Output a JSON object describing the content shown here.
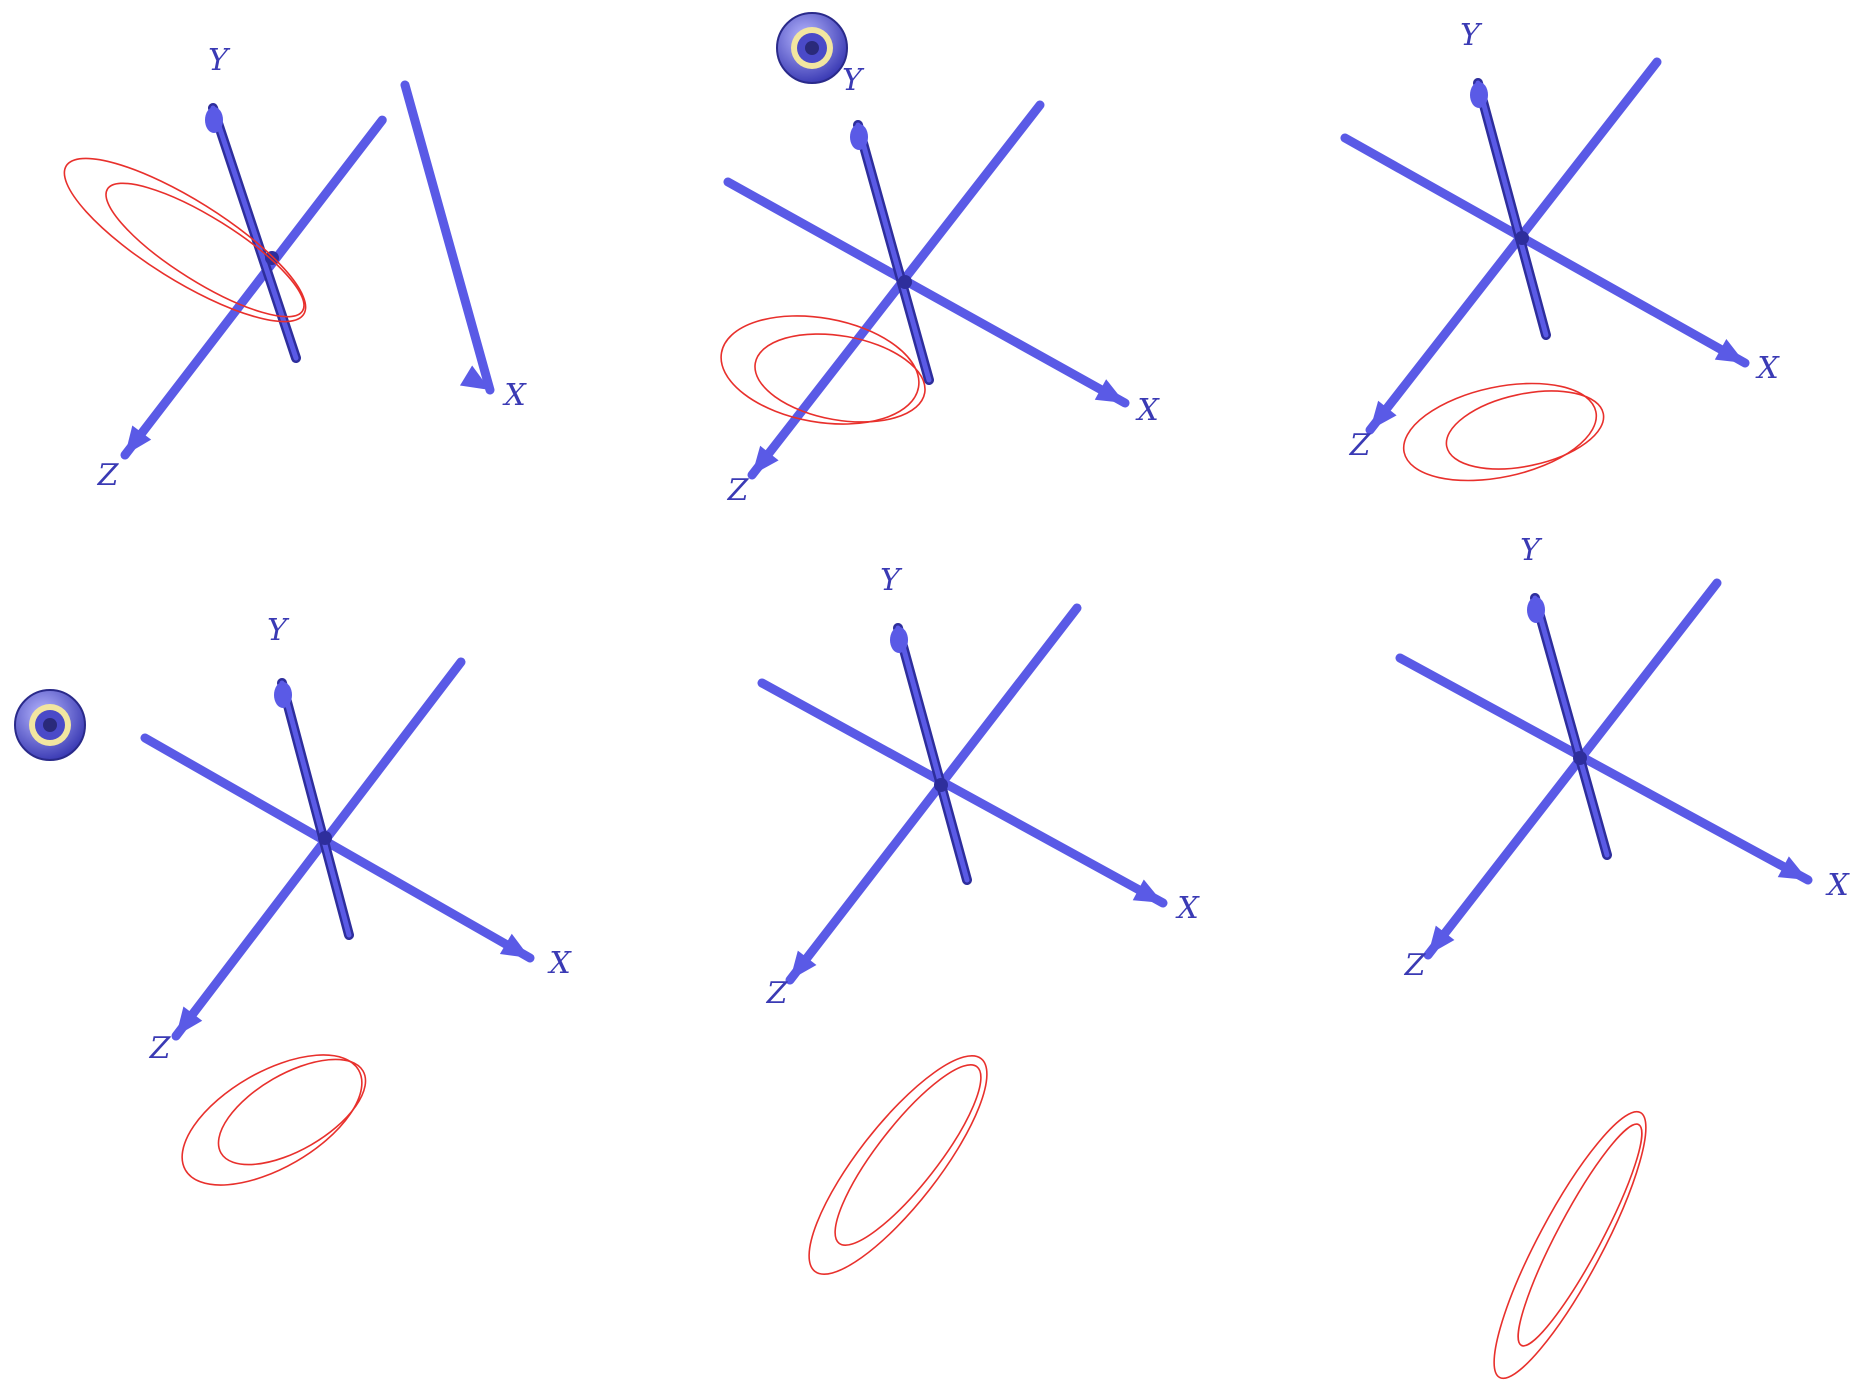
{
  "colors": {
    "axis": "#5a5ae6",
    "axis_shadow": "#2e2e9c",
    "axis_label": "#3a3ab4",
    "ring": "#e8302c",
    "target_outer": "#4a4ac8",
    "target_mid": "#f2e6a0",
    "target_inner": "#2a2a7a",
    "background": "#ffffff"
  },
  "axis_labels": {
    "x": "X",
    "y": "Y",
    "z": "Z"
  },
  "panels": [
    {
      "id": 1,
      "has_target_marker": false
    },
    {
      "id": 2,
      "has_target_marker": true
    },
    {
      "id": 3,
      "has_target_marker": false
    },
    {
      "id": 4,
      "has_target_marker": true
    },
    {
      "id": 5,
      "has_target_marker": false
    },
    {
      "id": 6,
      "has_target_marker": false
    }
  ],
  "icons": {
    "target_marker": "target-icon"
  }
}
